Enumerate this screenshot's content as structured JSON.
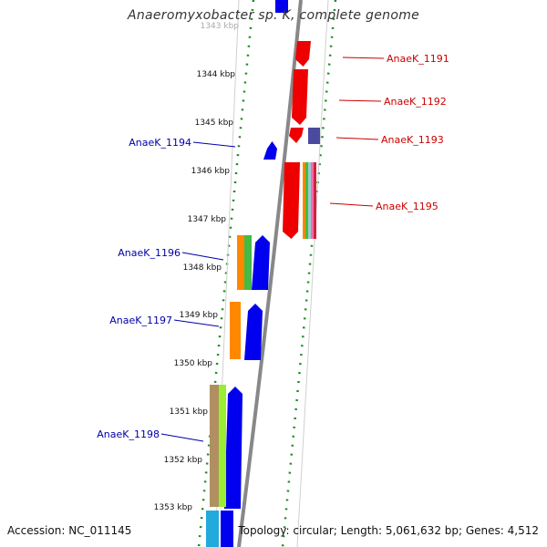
{
  "title": "Anaeromyxobacter sp. K, complete genome",
  "footer": {
    "accession": "Accession: NC_011145",
    "stats": "Topology: circular; Length: 5,061,632 bp; Genes: 4,512"
  },
  "ticks": [
    "1343 kbp",
    "1344 kbp",
    "1345 kbp",
    "1346 kbp",
    "1347 kbp",
    "1348 kbp",
    "1349 kbp",
    "1350 kbp",
    "1351 kbp",
    "1352 kbp",
    "1353 kbp"
  ],
  "labels": {
    "forward": [
      "AnaeK_1191",
      "AnaeK_1192",
      "AnaeK_1193",
      "AnaeK_1195"
    ],
    "reverse": [
      "AnaeK_1194",
      "AnaeK_1196",
      "AnaeK_1197",
      "AnaeK_1198"
    ]
  },
  "colors": {
    "forward_label": "#cc0000",
    "reverse_label": "#0000aa",
    "forward_gene": "#ee0000",
    "reverse_gene": "#0000ee",
    "backbone": "#888888",
    "dotted_ring": "#228b22"
  }
}
